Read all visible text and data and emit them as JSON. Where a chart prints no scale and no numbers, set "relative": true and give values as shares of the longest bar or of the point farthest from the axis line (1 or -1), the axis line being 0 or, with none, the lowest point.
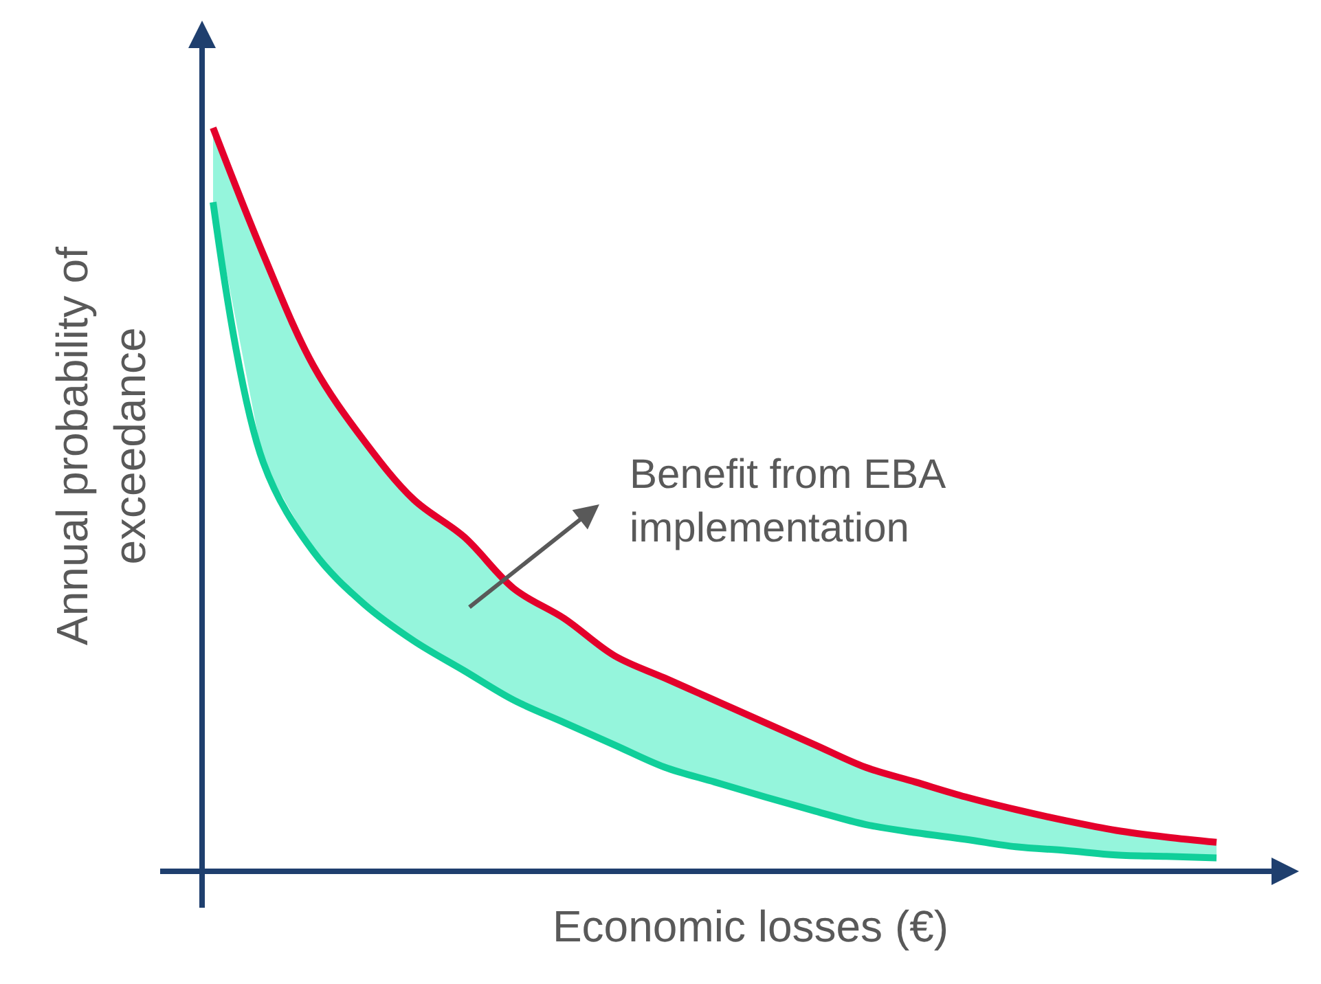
{
  "chart_data": {
    "type": "line",
    "relative": true,
    "xlabel": "Economic losses (€)",
    "ylabel": "Annual probability of exceedance",
    "categories": [
      null,
      null,
      null,
      null,
      null,
      null,
      null,
      null,
      null,
      null,
      null,
      null,
      null,
      null,
      null,
      null,
      null,
      null,
      null,
      null,
      null
    ],
    "series": [
      {
        "color": "#10cf9a",
        "values": [
          0.9,
          0.55,
          0.43,
          0.36,
          0.31,
          0.27,
          0.23,
          0.2,
          0.17,
          0.14,
          0.12,
          0.1,
          0.081,
          0.063,
          0.052,
          0.043,
          0.033,
          0.028,
          0.022,
          0.02,
          0.018
        ]
      },
      {
        "color": "#e4002b",
        "values": [
          1,
          0.83,
          0.68,
          0.58,
          0.5,
          0.45,
          0.38,
          0.34,
          0.29,
          0.26,
          0.23,
          0.2,
          0.17,
          0.14,
          0.12,
          0.1,
          0.083,
          0.068,
          0.055,
          0.046,
          0.039
        ],
        "lower": [
          0.9,
          0.55,
          0.43,
          0.36,
          0.31,
          0.27,
          0.23,
          0.2,
          0.17,
          0.14,
          0.12,
          0.1,
          0.081,
          0.063,
          0.052,
          0.043,
          0.033,
          0.028,
          0.022,
          0.02,
          0.018
        ],
        "upper": [
          1,
          0.83,
          0.68,
          0.58,
          0.5,
          0.45,
          0.38,
          0.34,
          0.29,
          0.26,
          0.23,
          0.2,
          0.17,
          0.14,
          0.12,
          0.1,
          0.083,
          0.068,
          0.055,
          0.046,
          0.039
        ]
      }
    ],
    "annotations": [
      "Benefit from EBA implementation"
    ],
    "marker": "none",
    "line_style": "solid"
  }
}
